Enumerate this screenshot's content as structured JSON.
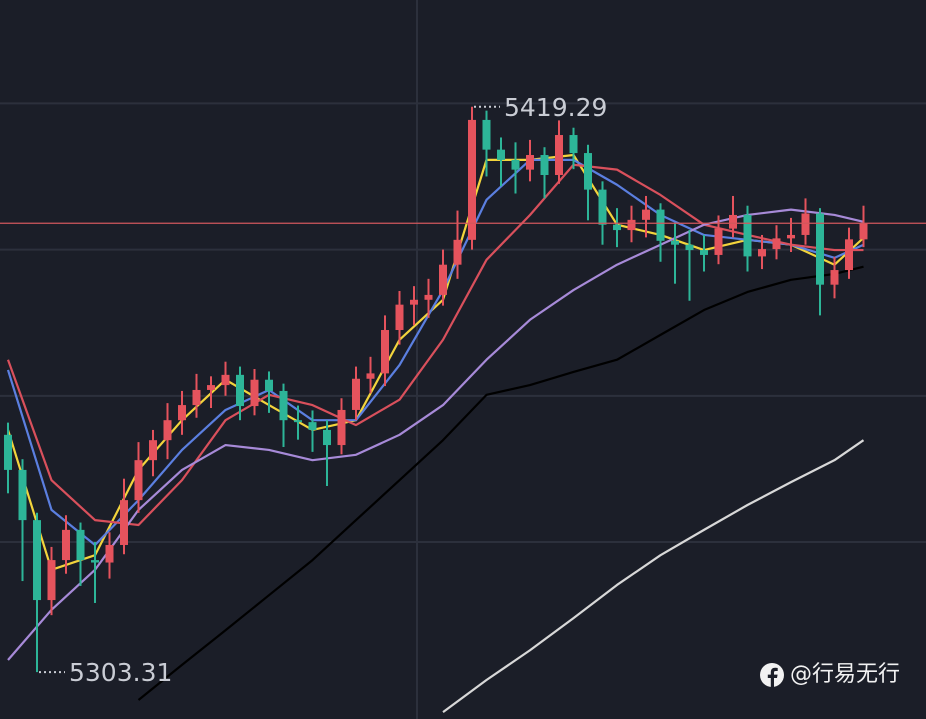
{
  "chart_data": {
    "type": "candlestick",
    "ylim": [
      5293.7,
      5441.2
    ],
    "yticks": [
      5330,
      5360,
      5390,
      5420
    ],
    "grid": true,
    "up_color": "#e5535d",
    "down_color": "#2db598",
    "last_price_color": "#d2575c",
    "ohlc": [
      [
        5352.0,
        5354.5,
        5340.0,
        5344.8
      ],
      [
        5344.8,
        5347.0,
        5322.0,
        5334.5
      ],
      [
        5334.5,
        5336.0,
        5303.31,
        5318.1
      ],
      [
        5318.1,
        5329.0,
        5315.0,
        5326.3
      ],
      [
        5326.3,
        5335.5,
        5323.5,
        5332.5
      ],
      [
        5332.5,
        5334.0,
        5321.0,
        5326.3
      ],
      [
        5326.3,
        5330.0,
        5317.5,
        5325.8
      ],
      [
        5325.8,
        5332.0,
        5322.5,
        5329.4
      ],
      [
        5329.4,
        5343.0,
        5327.5,
        5338.6
      ],
      [
        5338.6,
        5350.5,
        5336.0,
        5346.8
      ],
      [
        5346.8,
        5353.0,
        5343.5,
        5350.9
      ],
      [
        5350.9,
        5358.5,
        5347.0,
        5355.0
      ],
      [
        5355.0,
        5361.0,
        5352.0,
        5358.1
      ],
      [
        5358.1,
        5364.5,
        5355.5,
        5361.2
      ],
      [
        5361.2,
        5364.0,
        5357.5,
        5362.2
      ],
      [
        5362.2,
        5367.0,
        5360.0,
        5364.3
      ],
      [
        5364.3,
        5366.0,
        5355.0,
        5357.9
      ],
      [
        5357.9,
        5365.5,
        5356.0,
        5363.3
      ],
      [
        5363.3,
        5365.0,
        5356.5,
        5361.0
      ],
      [
        5361.0,
        5362.5,
        5349.5,
        5355.0
      ],
      [
        5355.0,
        5358.0,
        5351.0,
        5354.6
      ],
      [
        5354.6,
        5357.0,
        5348.5,
        5353.0
      ],
      [
        5353.0,
        5355.0,
        5341.5,
        5349.9
      ],
      [
        5349.9,
        5359.5,
        5348.0,
        5357.1
      ],
      [
        5357.1,
        5366.0,
        5355.0,
        5363.5
      ],
      [
        5363.5,
        5368.0,
        5360.5,
        5364.6
      ],
      [
        5364.6,
        5376.5,
        5362.0,
        5373.5
      ],
      [
        5373.5,
        5381.5,
        5370.5,
        5378.7
      ],
      [
        5378.7,
        5382.5,
        5374.5,
        5379.7
      ],
      [
        5379.7,
        5384.0,
        5376.0,
        5380.7
      ],
      [
        5380.7,
        5390.0,
        5378.5,
        5386.9
      ],
      [
        5386.9,
        5398.0,
        5384.0,
        5392.0
      ],
      [
        5392.0,
        5419.29,
        5390.0,
        5416.6
      ],
      [
        5416.6,
        5418.5,
        5405.0,
        5410.5
      ],
      [
        5410.5,
        5413.0,
        5403.0,
        5408.4
      ],
      [
        5408.4,
        5412.0,
        5401.5,
        5406.4
      ],
      [
        5406.4,
        5412.5,
        5404.0,
        5409.4
      ],
      [
        5409.4,
        5411.0,
        5400.5,
        5405.3
      ],
      [
        5405.3,
        5416.5,
        5403.5,
        5413.5
      ],
      [
        5413.5,
        5415.0,
        5406.5,
        5409.8
      ],
      [
        5409.8,
        5411.5,
        5396.0,
        5402.3
      ],
      [
        5402.3,
        5404.0,
        5391.0,
        5395.1
      ],
      [
        5395.1,
        5398.5,
        5390.5,
        5394.0
      ],
      [
        5394.0,
        5399.0,
        5391.5,
        5396.1
      ],
      [
        5396.1,
        5401.0,
        5392.5,
        5398.2
      ],
      [
        5398.2,
        5399.5,
        5387.5,
        5391.8
      ],
      [
        5391.8,
        5395.5,
        5383.0,
        5391.0
      ],
      [
        5391.0,
        5394.0,
        5379.5,
        5389.9
      ],
      [
        5389.9,
        5393.0,
        5385.5,
        5388.9
      ],
      [
        5388.9,
        5397.0,
        5387.0,
        5394.3
      ],
      [
        5394.3,
        5401.0,
        5392.5,
        5397.1
      ],
      [
        5397.1,
        5399.0,
        5385.5,
        5388.6
      ],
      [
        5388.6,
        5393.0,
        5386.0,
        5390.1
      ],
      [
        5390.1,
        5395.0,
        5388.0,
        5392.3
      ],
      [
        5392.3,
        5396.5,
        5389.5,
        5393.0
      ],
      [
        5393.0,
        5400.5,
        5391.0,
        5397.4
      ],
      [
        5397.4,
        5398.5,
        5376.5,
        5382.8
      ],
      [
        5382.8,
        5388.5,
        5380.0,
        5385.8
      ],
      [
        5385.8,
        5394.5,
        5384.0,
        5392.1
      ],
      [
        5392.1,
        5399.0,
        5390.5,
        5395.4
      ]
    ],
    "x": [
      0,
      3,
      6,
      9,
      12,
      15,
      18,
      21,
      24,
      27,
      30,
      33,
      36,
      39,
      42,
      45,
      48,
      51,
      54,
      57,
      59
    ],
    "series": [
      {
        "color": "#f2d43c",
        "values": [
          5353.0,
          5324.3,
          5327.3,
          5344.8,
          5355.0,
          5363.3,
          5358.1,
          5353.0,
          5355.0,
          5371.5,
          5379.7,
          5408.4,
          5408.4,
          5409.4,
          5395.1,
          5393.0,
          5389.9,
          5392.0,
          5391.0,
          5386.9,
          5392.4
        ]
      },
      {
        "color": "#5b7fe0",
        "values": [
          5365.3,
          5336.6,
          5329.4,
          5338.6,
          5348.9,
          5357.1,
          5361.2,
          5355.0,
          5355.0,
          5366.3,
          5381.7,
          5400.2,
          5408.4,
          5408.4,
          5403.3,
          5397.1,
          5393.0,
          5392.0,
          5391.0,
          5388.3,
          5391.0
        ]
      },
      {
        "color": "#d9505c",
        "values": [
          5367.4,
          5342.7,
          5334.5,
          5333.5,
          5342.7,
          5355.0,
          5360.2,
          5358.1,
          5354.0,
          5359.2,
          5371.5,
          5387.9,
          5397.1,
          5407.4,
          5406.4,
          5401.2,
          5395.1,
          5393.0,
          5391.0,
          5389.9,
          5389.9
        ]
      },
      {
        "color": "#a78ad8",
        "values": [
          5305.8,
          5316.1,
          5324.3,
          5336.6,
          5344.8,
          5349.9,
          5348.9,
          5346.8,
          5347.9,
          5352.0,
          5358.1,
          5367.4,
          5375.6,
          5381.7,
          5386.9,
          5391.0,
          5395.1,
          5397.1,
          5398.2,
          5397.1,
          5395.7
        ]
      },
      {
        "color": "#000000",
        "values": [
          null,
          null,
          null,
          5297.6,
          5304.8,
          5311.9,
          5319.1,
          5326.3,
          5334.5,
          5342.7,
          5350.9,
          5360.2,
          5362.2,
          5364.9,
          5367.4,
          5372.5,
          5377.6,
          5381.3,
          5383.8,
          5385.0,
          5386.5
        ]
      },
      {
        "color": "#d8d8d8",
        "values": [
          null,
          null,
          null,
          null,
          null,
          null,
          null,
          null,
          null,
          null,
          5295.1,
          5301.7,
          5307.8,
          5314.4,
          5321.2,
          5327.3,
          5332.5,
          5337.6,
          5342.3,
          5346.8,
          5350.9
        ]
      }
    ],
    "watermark": "@行易无行"
  }
}
